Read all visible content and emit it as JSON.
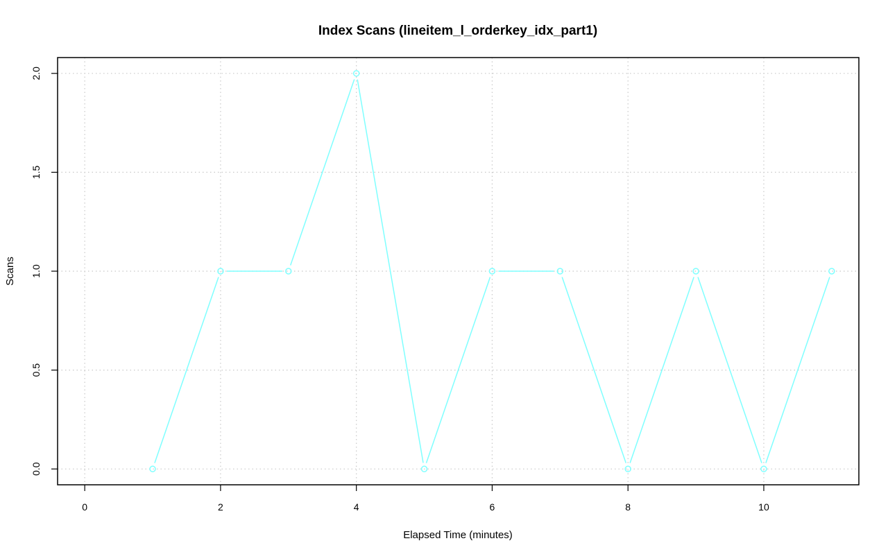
{
  "chart_data": {
    "type": "line",
    "title": "Index Scans (lineitem_l_orderkey_idx_part1)",
    "xlabel": "Elapsed Time (minutes)",
    "ylabel": "Scans",
    "xlim": [
      -0.4,
      11.4
    ],
    "ylim": [
      -0.08,
      2.08
    ],
    "x_ticks": [
      0,
      2,
      4,
      6,
      8,
      10
    ],
    "x_tick_labels": [
      "0",
      "2",
      "4",
      "6",
      "8",
      "10"
    ],
    "y_ticks": [
      0,
      0.5,
      1,
      1.5,
      2
    ],
    "y_tick_labels": [
      "0.0",
      "0.5",
      "1.0",
      "1.5",
      "2.0"
    ],
    "grid": true,
    "line_color": "#7fffff",
    "frame_color": "#000000",
    "grid_color": "#c8c8c8",
    "x": [
      1,
      2,
      3,
      4,
      5,
      6,
      7,
      8,
      9,
      10,
      11
    ],
    "values": [
      0,
      1,
      1,
      2,
      0,
      1,
      1,
      0,
      1,
      0,
      1
    ]
  }
}
